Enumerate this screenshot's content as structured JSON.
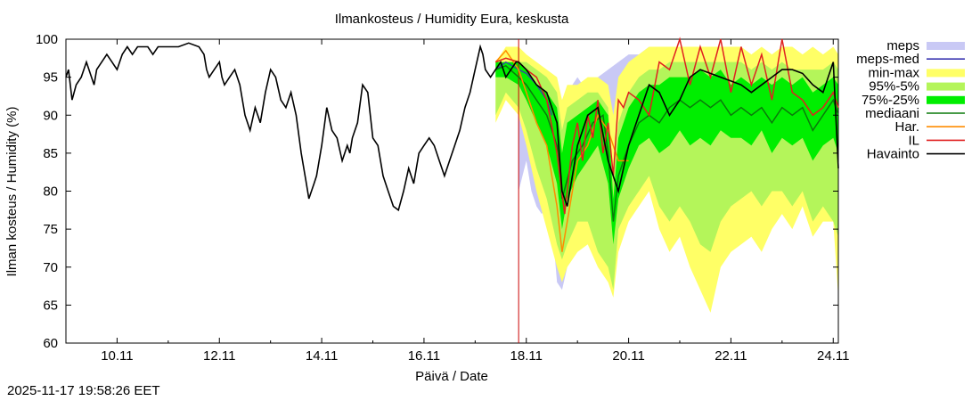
{
  "chart_data": {
    "type": "line",
    "title": "Ilmankosteus / Humidity  Eura, keskusta",
    "xlabel": "Päivä / Date",
    "ylabel": "Ilman kosteus / Humidity (%)",
    "ylim": [
      60,
      100
    ],
    "xlim_days": [
      9.0,
      24.1
    ],
    "yticks": [
      60,
      65,
      70,
      75,
      80,
      85,
      90,
      95,
      100
    ],
    "xticks": [
      {
        "day": 10,
        "label": "10.11"
      },
      {
        "day": 12,
        "label": "12.11"
      },
      {
        "day": 14,
        "label": "14.11"
      },
      {
        "day": 16,
        "label": "16.11"
      },
      {
        "day": 18,
        "label": "18.11"
      },
      {
        "day": 20,
        "label": "20.11"
      },
      {
        "day": 22,
        "label": "22.11"
      },
      {
        "day": 24,
        "label": "24.11"
      }
    ],
    "now_marker_day": 17.85,
    "colors": {
      "meps": "#c9c9f5",
      "meps_med": "#3a36b0",
      "minmax": "#ffff66",
      "p95_5": "#b4f55a",
      "p75_25": "#00ee00",
      "median": "#0a7a0a",
      "har": "#ff8c00",
      "il": "#e02020",
      "obs": "#000000",
      "now_line": "#cc0000"
    },
    "legend": [
      {
        "key": "meps",
        "label": "meps",
        "style": "band"
      },
      {
        "key": "meps_med",
        "label": "meps-med",
        "style": "line"
      },
      {
        "key": "minmax",
        "label": "min-max",
        "style": "band"
      },
      {
        "key": "p95_5",
        "label": "95%-5%",
        "style": "band"
      },
      {
        "key": "p75_25",
        "label": "75%-25%",
        "style": "band"
      },
      {
        "key": "median",
        "label": "mediaani",
        "style": "line"
      },
      {
        "key": "har",
        "label": "Har.",
        "style": "line"
      },
      {
        "key": "il",
        "label": "IL",
        "style": "line"
      },
      {
        "key": "obs",
        "label": "Havainto",
        "style": "line"
      }
    ],
    "series": {
      "observation": {
        "x": [
          9.0,
          9.05,
          9.12,
          9.2,
          9.3,
          9.4,
          9.5,
          9.55,
          9.6,
          9.7,
          9.8,
          9.9,
          10.0,
          10.1,
          10.2,
          10.3,
          10.4,
          10.5,
          10.6,
          10.7,
          10.8,
          10.9,
          11.0,
          11.2,
          11.4,
          11.6,
          11.7,
          11.75,
          11.8,
          11.9,
          12.0,
          12.05,
          12.1,
          12.2,
          12.3,
          12.4,
          12.5,
          12.6,
          12.7,
          12.75,
          12.8,
          12.9,
          13.0,
          13.1,
          13.2,
          13.3,
          13.4,
          13.5,
          13.6,
          13.7,
          13.75,
          13.8,
          13.85,
          13.9,
          14.0,
          14.1,
          14.2,
          14.3,
          14.4,
          14.5,
          14.55,
          14.6,
          14.7,
          14.8,
          14.9,
          15.0,
          15.1,
          15.2,
          15.3,
          15.4,
          15.5,
          15.6,
          15.7,
          15.8,
          15.9,
          16.0,
          16.1,
          16.2,
          16.3,
          16.4,
          16.5,
          16.6,
          16.7,
          16.8,
          16.9,
          17.0,
          17.1,
          17.15,
          17.2,
          17.3,
          17.4,
          17.5,
          17.6,
          17.7,
          17.8,
          17.85
        ],
        "y": [
          95.0,
          96.0,
          92.0,
          94.0,
          95.0,
          97.0,
          95.0,
          94.0,
          96.0,
          97.0,
          98.0,
          97.0,
          96.0,
          98.0,
          99.0,
          98.0,
          99.0,
          99.0,
          99.0,
          98.0,
          99.0,
          99.0,
          99.0,
          99.0,
          99.5,
          99.0,
          98.0,
          96.0,
          95.0,
          96.0,
          97.0,
          95.0,
          94.0,
          95.0,
          96.0,
          94.0,
          90.0,
          88.0,
          91.0,
          90.0,
          89.0,
          93.0,
          96.0,
          95.0,
          92.0,
          91.0,
          93.0,
          90.0,
          85.0,
          81.0,
          79.0,
          80.0,
          81.0,
          82.0,
          86.0,
          91.0,
          88.0,
          87.0,
          84.0,
          86.0,
          85.0,
          87.0,
          89.0,
          94.0,
          93.0,
          87.0,
          86.0,
          82.0,
          80.0,
          78.0,
          77.5,
          80.0,
          83.0,
          81.0,
          85.0,
          86.0,
          87.0,
          86.0,
          84.0,
          82.0,
          84.0,
          86.0,
          88.0,
          91.0,
          93.0,
          96.0,
          99.0,
          98.0,
          96.0,
          95.0,
          96.0,
          97.0,
          95.0,
          96.0,
          97.0,
          97.0
        ]
      },
      "observation_late": {
        "x": [
          17.85,
          18.0,
          18.2,
          18.4,
          18.6,
          18.7,
          18.8,
          19.0,
          19.2,
          19.4,
          19.6,
          19.8,
          20.0,
          20.2,
          20.4,
          20.6,
          20.8,
          21.0,
          21.2,
          21.4,
          21.6,
          21.8,
          22.0,
          22.2,
          22.4,
          22.6,
          22.8,
          23.0,
          23.2,
          23.4,
          23.6,
          23.8,
          24.0,
          24.1
        ],
        "y": [
          97.0,
          96.0,
          94.0,
          93.0,
          89.0,
          80.0,
          78.0,
          86.0,
          90.0,
          91.0,
          84.0,
          80.0,
          86.0,
          90.0,
          94.0,
          93.0,
          90.0,
          92.0,
          95.0,
          96.0,
          95.5,
          95.0,
          94.5,
          94.0,
          93.0,
          94.0,
          95.0,
          96.0,
          96.0,
          95.5,
          94.0,
          93.0,
          97.0,
          83.0
        ]
      },
      "il": {
        "x": [
          17.4,
          17.6,
          17.85,
          18.0,
          18.2,
          18.4,
          18.6,
          18.75,
          18.9,
          19.0,
          19.1,
          19.2,
          19.3,
          19.4,
          19.5,
          19.6,
          19.7,
          19.8,
          19.9,
          20.0,
          20.2,
          20.4,
          20.6,
          20.8,
          21.0,
          21.2,
          21.4,
          21.6,
          21.8,
          22.0,
          22.2,
          22.4,
          22.6,
          22.8,
          23.0,
          23.2,
          23.4,
          23.6,
          23.8,
          24.0,
          24.1
        ],
        "y": [
          97.0,
          97.5,
          97.0,
          96.0,
          95.0,
          92.0,
          85.0,
          77.0,
          86.0,
          89.0,
          84.0,
          90.0,
          87.0,
          92.0,
          85.0,
          89.0,
          82.0,
          92.0,
          91.0,
          93.0,
          92.0,
          90.0,
          97.0,
          96.0,
          100.0,
          94.0,
          99.0,
          95.0,
          100.0,
          93.0,
          99.0,
          94.0,
          98.0,
          92.0,
          100.0,
          93.0,
          92.0,
          90.0,
          91.0,
          93.0,
          91.0
        ]
      },
      "har": {
        "x": [
          17.4,
          17.6,
          17.85,
          18.0,
          18.2,
          18.4,
          18.6,
          18.7,
          18.8,
          19.0,
          19.2,
          19.4,
          19.6,
          19.8,
          20.0
        ],
        "y": [
          97.0,
          98.5,
          96.0,
          93.0,
          89.0,
          86.0,
          78.0,
          72.0,
          76.0,
          84.0,
          86.0,
          90.0,
          88.0,
          84.0,
          84.0
        ]
      },
      "median": {
        "x": [
          17.4,
          17.6,
          17.85,
          18.0,
          18.2,
          18.4,
          18.6,
          18.7,
          18.9,
          19.1,
          19.3,
          19.5,
          19.6,
          19.7,
          19.8,
          20.0,
          20.2,
          20.4,
          20.6,
          20.8,
          21.0,
          21.2,
          21.4,
          21.6,
          21.8,
          22.0,
          22.2,
          22.4,
          22.6,
          22.8,
          23.0,
          23.2,
          23.4,
          23.6,
          23.8,
          24.0,
          24.1
        ],
        "y": [
          96.0,
          96.5,
          95.0,
          94.0,
          92.0,
          90.0,
          86.0,
          79.0,
          84.0,
          86.0,
          89.0,
          90.0,
          85.0,
          76.0,
          82.0,
          86.0,
          89.0,
          90.0,
          89.0,
          91.0,
          92.0,
          91.0,
          92.0,
          91.0,
          92.0,
          90.0,
          91.0,
          90.0,
          91.0,
          89.0,
          91.0,
          90.0,
          91.0,
          88.0,
          90.0,
          92.0,
          90.0
        ]
      },
      "meps_med": {
        "x": [
          17.4,
          17.6,
          17.85,
          18.0,
          18.2,
          18.4,
          18.5
        ],
        "y": [
          96.0,
          97.0,
          96.0,
          95.5,
          94.0,
          92.0,
          90.0
        ]
      },
      "band_x": [
        17.4,
        17.6,
        17.85,
        18.0,
        18.2,
        18.4,
        18.6,
        18.7,
        18.8,
        19.0,
        19.2,
        19.4,
        19.6,
        19.7,
        19.8,
        20.0,
        20.2,
        20.4,
        20.6,
        20.8,
        21.0,
        21.2,
        21.4,
        21.6,
        21.8,
        22.0,
        22.2,
        22.4,
        22.6,
        22.8,
        23.0,
        23.2,
        23.4,
        23.6,
        23.8,
        24.0,
        24.1
      ],
      "minmax": {
        "upper": [
          97,
          99,
          99,
          98,
          97,
          96,
          95,
          92,
          94,
          94,
          95,
          95,
          94,
          90,
          95,
          97,
          98,
          99,
          99,
          99,
          99,
          99,
          99,
          99,
          99,
          99,
          99,
          98,
          99,
          98,
          99,
          99,
          98,
          99,
          98,
          99,
          98
        ],
        "lower": [
          89,
          92,
          90,
          86,
          80,
          75,
          70,
          68,
          70,
          72,
          73,
          70,
          68,
          66,
          72,
          76,
          78,
          80,
          75,
          72,
          74,
          70,
          67,
          64,
          70,
          72,
          73,
          74,
          72,
          75,
          77,
          75,
          78,
          74,
          76,
          76,
          66
        ]
      },
      "p95_5": {
        "upper": [
          96,
          97,
          97,
          97,
          96,
          95,
          93,
          88,
          91,
          92,
          93,
          93,
          91,
          82,
          89,
          93,
          95,
          96,
          96,
          97,
          97,
          97,
          97,
          97,
          97,
          97,
          97,
          96,
          97,
          96,
          97,
          96,
          96,
          96,
          96,
          97,
          96
        ],
        "lower": [
          90,
          93,
          91,
          88,
          83,
          79,
          73,
          71,
          73,
          76,
          76,
          72,
          70,
          67,
          75,
          78,
          80,
          82,
          78,
          76,
          78,
          76,
          73,
          72,
          76,
          78,
          79,
          80,
          78,
          80,
          80,
          78,
          80,
          76,
          78,
          76,
          74
        ]
      },
      "p75_25": {
        "upper": [
          97,
          97,
          97,
          96,
          94,
          93,
          91,
          85,
          89,
          90,
          91,
          92,
          90,
          79,
          87,
          91,
          93,
          94,
          94,
          95,
          95,
          95,
          96,
          95,
          96,
          94,
          95,
          94,
          95,
          94,
          95,
          94,
          95,
          93,
          94,
          95,
          94
        ],
        "lower": [
          95,
          95,
          94,
          92,
          89,
          86,
          81,
          75,
          79,
          82,
          84,
          86,
          81,
          73,
          79,
          83,
          86,
          87,
          85,
          86,
          88,
          86,
          87,
          86,
          88,
          87,
          87,
          86,
          88,
          85,
          87,
          86,
          87,
          84,
          86,
          87,
          85
        ]
      },
      "meps_band": {
        "x": [
          17.85,
          18.0,
          18.1,
          18.2,
          18.3,
          18.4,
          18.5,
          18.6,
          18.7,
          18.8,
          19.0,
          19.2,
          19.4,
          19.6,
          19.8,
          20.0,
          20.2,
          20.4
        ],
        "upper": [
          97,
          96,
          94,
          92,
          91,
          93,
          94,
          93,
          92,
          93,
          95,
          93,
          95,
          96,
          97,
          98,
          98,
          99
        ],
        "lower": [
          80,
          84,
          80,
          78,
          77,
          78,
          76,
          68,
          67,
          70,
          76,
          74,
          76,
          80,
          85,
          88,
          90,
          92
        ]
      }
    }
  },
  "timestamp": "2025-11-17 19:58:26 EET"
}
